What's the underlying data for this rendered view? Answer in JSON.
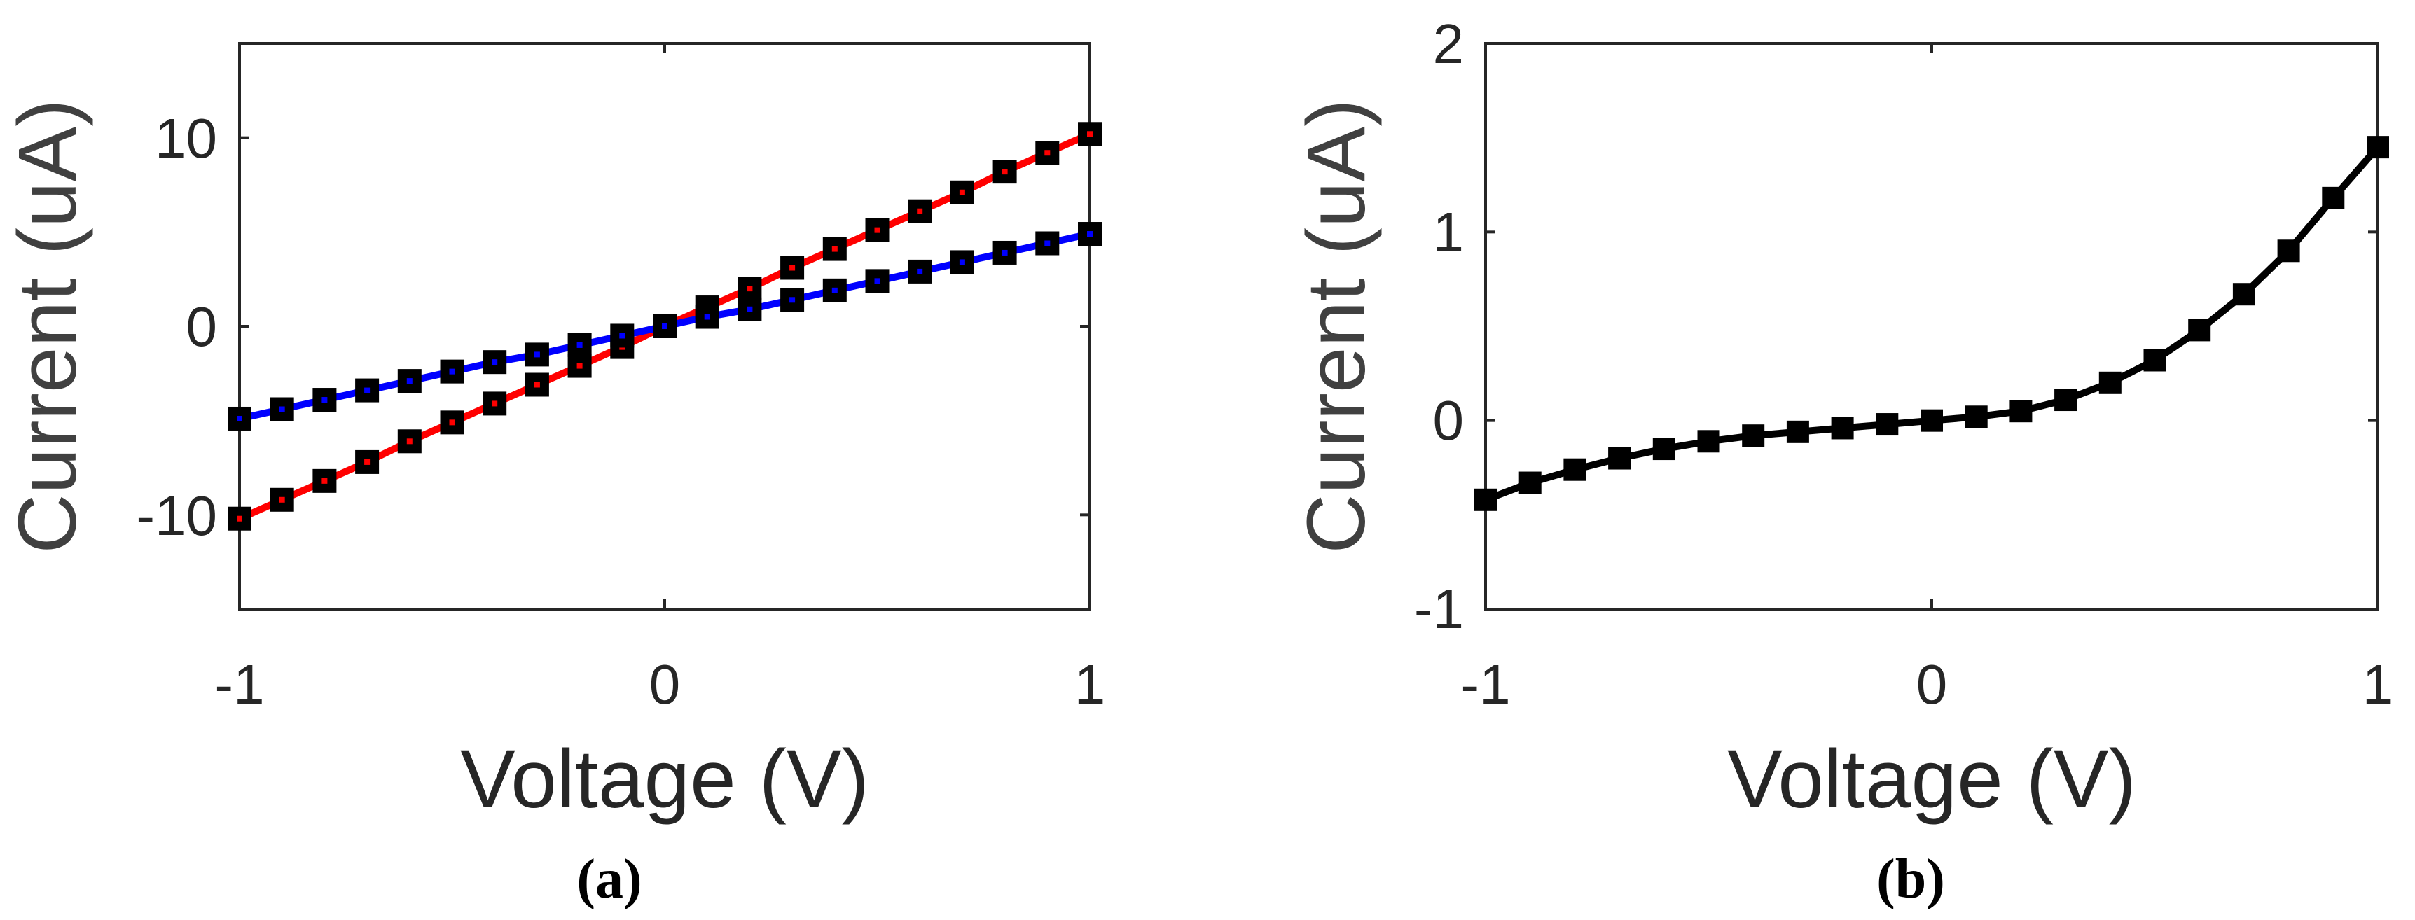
{
  "chart_data": [
    {
      "type": "line",
      "caption": "(a)",
      "xlabel": "Voltage (V)",
      "ylabel": "Current (uA)",
      "xlim": [
        -1,
        1
      ],
      "ylim": [
        -15,
        15
      ],
      "xticks": [
        -1,
        0,
        1
      ],
      "xtick_labels": [
        "-1",
        "0",
        "1"
      ],
      "yticks": [
        -10,
        0,
        10
      ],
      "ytick_labels": [
        "-10",
        "0",
        "10"
      ],
      "grid": false,
      "x": [
        -1,
        -0.9,
        -0.8,
        -0.7,
        -0.6,
        -0.5,
        -0.4,
        -0.3,
        -0.2,
        -0.1,
        0,
        0.1,
        0.2,
        0.3,
        0.4,
        0.5,
        0.6,
        0.7,
        0.8,
        0.9,
        1
      ],
      "series": [
        {
          "name": "red",
          "color": "#ff0000",
          "values": [
            -10.2,
            -9.2,
            -8.2,
            -7.2,
            -6.1,
            -5.1,
            -4.1,
            -3.1,
            -2.1,
            -1.1,
            0,
            1.0,
            2.0,
            3.1,
            4.1,
            5.1,
            6.1,
            7.1,
            8.2,
            9.2,
            10.2
          ]
        },
        {
          "name": "blue",
          "color": "#0000ff",
          "values": [
            -4.9,
            -4.4,
            -3.9,
            -3.4,
            -2.9,
            -2.4,
            -1.9,
            -1.5,
            -1.0,
            -0.5,
            0,
            0.5,
            0.9,
            1.4,
            1.9,
            2.4,
            2.9,
            3.4,
            3.9,
            4.4,
            4.9
          ]
        }
      ]
    },
    {
      "type": "line",
      "caption": "(b)",
      "xlabel": "Voltage (V)",
      "ylabel": "Current (uA)",
      "xlim": [
        -1,
        1
      ],
      "ylim": [
        -1,
        2
      ],
      "xticks": [
        -1,
        0,
        1
      ],
      "xtick_labels": [
        "-1",
        "0",
        "1"
      ],
      "yticks": [
        -1,
        0,
        1,
        2
      ],
      "ytick_labels": [
        "-1",
        "0",
        "1",
        "2"
      ],
      "grid": false,
      "x": [
        -1,
        -0.9,
        -0.8,
        -0.7,
        -0.6,
        -0.5,
        -0.4,
        -0.3,
        -0.2,
        -0.1,
        0,
        0.1,
        0.2,
        0.3,
        0.4,
        0.5,
        0.6,
        0.7,
        0.8,
        0.9,
        1
      ],
      "series": [
        {
          "name": "black",
          "color": "#000000",
          "values": [
            -0.42,
            -0.33,
            -0.26,
            -0.2,
            -0.15,
            -0.11,
            -0.08,
            -0.06,
            -0.04,
            -0.02,
            0,
            0.02,
            0.05,
            0.11,
            0.2,
            0.32,
            0.48,
            0.67,
            0.9,
            1.18,
            1.45
          ]
        }
      ]
    }
  ]
}
